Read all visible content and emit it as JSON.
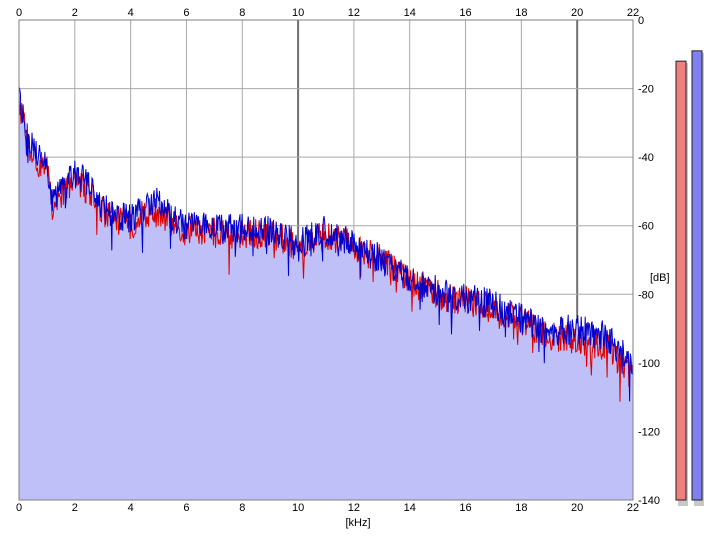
{
  "chart_data": {
    "type": "area",
    "xlabel": "[kHz]",
    "ylabel": "[dB]",
    "xlim": [
      0,
      22
    ],
    "ylim": [
      -140,
      0
    ],
    "x_ticks": [
      "0",
      "2",
      "4",
      "6",
      "8",
      "10",
      "12",
      "14",
      "16",
      "18",
      "20",
      "22"
    ],
    "y_ticks": [
      "0",
      "-20",
      "-40",
      "-60",
      "-80",
      "-100",
      "-120",
      "-140"
    ],
    "grid": true,
    "fill_color": "#c0c0f8",
    "series": [
      {
        "color": "#e00000",
        "x": [
          0,
          0.1,
          0.3,
          0.5,
          0.8,
          1.0,
          1.2,
          1.5,
          2.0,
          2.5,
          3.0,
          3.5,
          4.0,
          4.5,
          5.0,
          5.5,
          6.0,
          7.0,
          8.0,
          9.0,
          10.0,
          11.0,
          12.0,
          13.0,
          14.0,
          15.0,
          16.0,
          17.0,
          18.0,
          19.0,
          20.0,
          21.0,
          21.5,
          22.0
        ],
        "values": [
          -24,
          -28,
          -36,
          -40,
          -42,
          -44,
          -54,
          -52,
          -46,
          -50,
          -56,
          -58,
          -60,
          -56,
          -56,
          -60,
          -61,
          -62,
          -63,
          -62,
          -66,
          -63,
          -66,
          -70,
          -76,
          -80,
          -82,
          -84,
          -88,
          -92,
          -93,
          -95,
          -99,
          -104
        ]
      },
      {
        "color": "#0000d0",
        "x": [
          0,
          0.1,
          0.3,
          0.5,
          0.8,
          1.0,
          1.2,
          1.5,
          2.0,
          2.5,
          3.0,
          3.5,
          4.0,
          4.5,
          5.0,
          5.5,
          6.0,
          7.0,
          8.0,
          9.0,
          10.0,
          11.0,
          12.0,
          13.0,
          14.0,
          15.0,
          16.0,
          17.0,
          18.0,
          19.0,
          20.0,
          21.0,
          21.5,
          22.0
        ],
        "values": [
          -22,
          -26,
          -34,
          -37,
          -39,
          -42,
          -52,
          -50,
          -45,
          -48,
          -55,
          -57,
          -58,
          -55,
          -52,
          -58,
          -60,
          -61,
          -61,
          -61,
          -65,
          -61,
          -65,
          -70,
          -76,
          -79,
          -81,
          -83,
          -87,
          -91,
          -90,
          -92,
          -96,
          -101
        ]
      }
    ],
    "level_meters": [
      {
        "color": "#f08080",
        "level_db": -12
      },
      {
        "color": "#8080f0",
        "level_db": -9
      }
    ]
  }
}
